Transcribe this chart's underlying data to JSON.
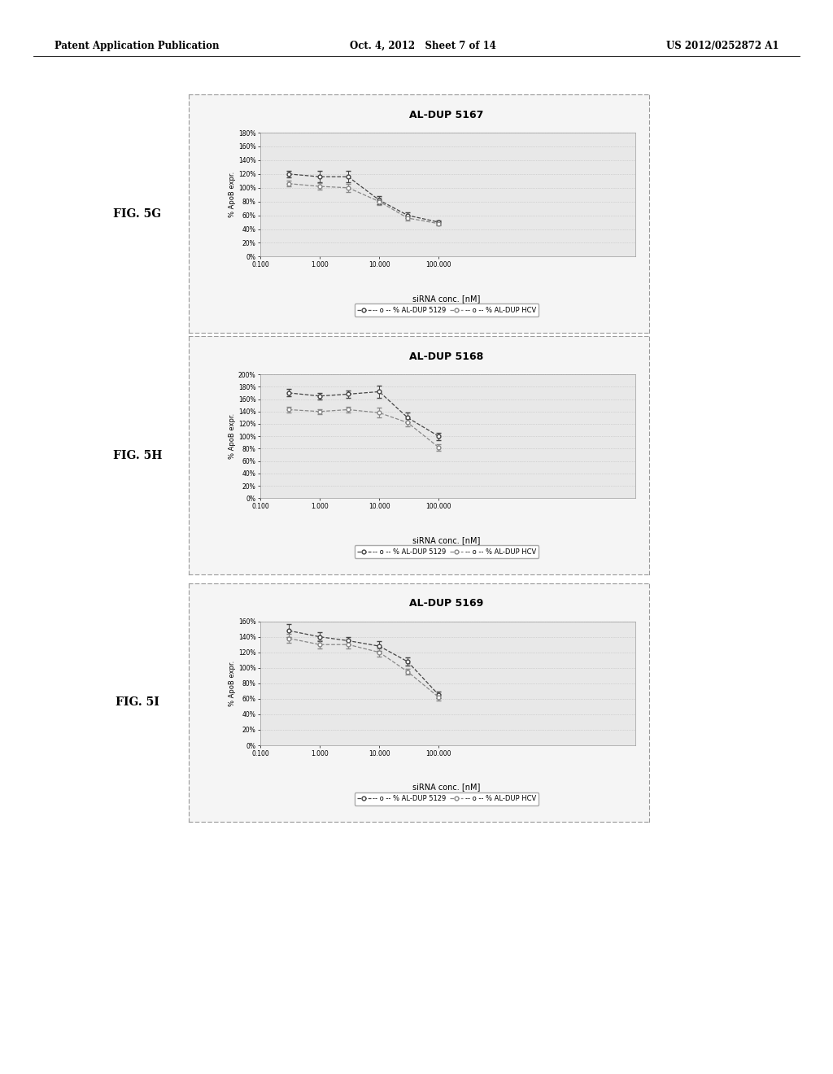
{
  "charts": [
    {
      "title": "AL-DUP 5167",
      "fig_label": "FIG. 5G",
      "series": [
        {
          "label": "% AL-DUP 5129",
          "x": [
            0.3,
            1.0,
            3.0,
            10.0,
            30.0,
            100.0
          ],
          "y": [
            120,
            116,
            116,
            82,
            60,
            50
          ],
          "yerr": [
            5,
            8,
            8,
            6,
            4,
            3
          ]
        },
        {
          "label": "% AL-DUP HCV",
          "x": [
            0.3,
            1.0,
            3.0,
            10.0,
            30.0,
            100.0
          ],
          "y": [
            106,
            102,
            100,
            80,
            56,
            48
          ],
          "yerr": [
            4,
            5,
            6,
            5,
            3,
            3
          ]
        }
      ],
      "ylim": [
        0,
        180
      ],
      "yticks": [
        0,
        20,
        40,
        60,
        80,
        100,
        120,
        140,
        160,
        180
      ],
      "yticklabels": [
        "0%",
        "20%",
        "40%",
        "60%",
        "80%",
        "100%",
        "120%",
        "140%",
        "160%",
        "180%"
      ]
    },
    {
      "title": "AL-DUP 5168",
      "fig_label": "FIG. 5H",
      "series": [
        {
          "label": "% AL-DUP 5129",
          "x": [
            0.3,
            1.0,
            3.0,
            10.0,
            30.0,
            100.0
          ],
          "y": [
            170,
            165,
            168,
            172,
            130,
            100
          ],
          "yerr": [
            6,
            5,
            6,
            10,
            8,
            6
          ]
        },
        {
          "label": "% AL-DUP HCV",
          "x": [
            0.3,
            1.0,
            3.0,
            10.0,
            30.0,
            100.0
          ],
          "y": [
            143,
            140,
            143,
            138,
            122,
            82
          ],
          "yerr": [
            5,
            4,
            5,
            8,
            6,
            5
          ]
        }
      ],
      "ylim": [
        0,
        200
      ],
      "yticks": [
        0,
        20,
        40,
        60,
        80,
        100,
        120,
        140,
        160,
        180,
        200
      ],
      "yticklabels": [
        "0%",
        "20%",
        "40%",
        "60%",
        "80%",
        "100%",
        "120%",
        "140%",
        "160%",
        "180%",
        "200%"
      ]
    },
    {
      "title": "AL-DUP 5169",
      "fig_label": "FIG. 5I",
      "series": [
        {
          "label": "% AL-DUP 5129",
          "x": [
            0.3,
            1.0,
            3.0,
            10.0,
            30.0,
            100.0
          ],
          "y": [
            148,
            140,
            135,
            128,
            108,
            65
          ],
          "yerr": [
            8,
            6,
            5,
            6,
            5,
            4
          ]
        },
        {
          "label": "% AL-DUP HCV",
          "x": [
            0.3,
            1.0,
            3.0,
            10.0,
            30.0,
            100.0
          ],
          "y": [
            138,
            130,
            130,
            120,
            95,
            62
          ],
          "yerr": [
            6,
            5,
            5,
            5,
            4,
            4
          ]
        }
      ],
      "ylim": [
        0,
        160
      ],
      "yticks": [
        0,
        20,
        40,
        60,
        80,
        100,
        120,
        140,
        160
      ],
      "yticklabels": [
        "0%",
        "20%",
        "40%",
        "60%",
        "80%",
        "100%",
        "120%",
        "140%",
        "160%"
      ]
    }
  ],
  "xlabel": "siRNA conc. [nM]",
  "ylabel": "% ApoB expr.",
  "page_title_left": "Patent Application Publication",
  "page_title_center": "Oct. 4, 2012   Sheet 7 of 14",
  "page_title_right": "US 2012/0252872 A1",
  "background_color": "#ffffff",
  "panel_bg": "#f5f5f5",
  "plot_bg": "#e8e8e8",
  "grid_color": "#bbbbbb",
  "line_color_1": "#444444",
  "line_color_2": "#888888",
  "xtick_vals": [
    0.1,
    1.0,
    10.0,
    100.0
  ],
  "xtick_labels": [
    "0.100",
    "1.000",
    "10.000",
    "100.000"
  ],
  "legend_label_1": "-- o -- % AL-DUP 5129",
  "legend_label_2": "-- o -- % AL-DUP HCV"
}
